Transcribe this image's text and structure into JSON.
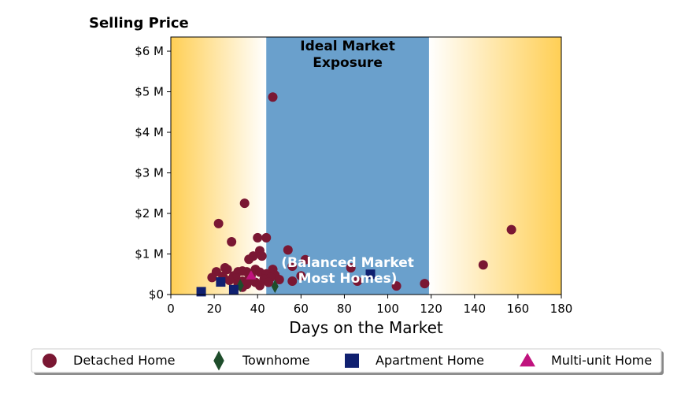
{
  "chart_data": {
    "type": "scatter",
    "title": "",
    "ylabel": "Selling Price",
    "xlabel": "Days on the Market",
    "xlim": [
      0,
      180
    ],
    "ylim": [
      0,
      6350000
    ],
    "xticks": [
      0,
      20,
      40,
      60,
      80,
      100,
      120,
      140,
      160,
      180
    ],
    "xtick_labels": [
      "0",
      "20",
      "40",
      "60",
      "80",
      "100",
      "120",
      "140",
      "160",
      "180"
    ],
    "yticks": [
      0,
      1000000,
      2000000,
      3000000,
      4000000,
      5000000,
      6000000
    ],
    "ytick_labels": [
      "$0",
      "$1 M",
      "$2 M",
      "$3 M",
      "$4 M",
      "$5 M",
      "$6 M"
    ],
    "grid": false,
    "legend_position": "bottom",
    "bands": {
      "balanced": {
        "x_range": [
          44,
          119
        ],
        "color": "#6aa0cc"
      },
      "gradient_color": "#ffcf55"
    },
    "annotations": {
      "top_line1": "Ideal Market",
      "top_line2": "Exposure",
      "bottom_line1": "(Balanced Market",
      "bottom_line2": "Most Homes)"
    },
    "series": [
      {
        "name": "Detached Home",
        "marker": "circle",
        "color": "#7a1733",
        "points": [
          [
            47,
            4870000
          ],
          [
            34,
            2250000
          ],
          [
            22,
            1750000
          ],
          [
            157,
            1600000
          ],
          [
            28,
            1300000
          ],
          [
            40,
            1400000
          ],
          [
            44,
            1400000
          ],
          [
            54,
            1100000
          ],
          [
            41,
            1080000
          ],
          [
            42,
            950000
          ],
          [
            38,
            950000
          ],
          [
            36,
            870000
          ],
          [
            62,
            860000
          ],
          [
            144,
            730000
          ],
          [
            56,
            700000
          ],
          [
            83,
            660000
          ],
          [
            25,
            660000
          ],
          [
            26,
            620000
          ],
          [
            39,
            620000
          ],
          [
            47,
            620000
          ],
          [
            33,
            580000
          ],
          [
            21,
            560000
          ],
          [
            31,
            560000
          ],
          [
            35,
            560000
          ],
          [
            41,
            550000
          ],
          [
            44,
            510000
          ],
          [
            48,
            480000
          ],
          [
            29,
            460000
          ],
          [
            37,
            470000
          ],
          [
            24,
            450000
          ],
          [
            60,
            460000
          ],
          [
            46,
            420000
          ],
          [
            19,
            420000
          ],
          [
            30,
            400000
          ],
          [
            36,
            380000
          ],
          [
            43,
            380000
          ],
          [
            50,
            370000
          ],
          [
            27,
            350000
          ],
          [
            33,
            330000
          ],
          [
            56,
            330000
          ],
          [
            86,
            330000
          ],
          [
            39,
            300000
          ],
          [
            45,
            300000
          ],
          [
            31,
            280000
          ],
          [
            35,
            250000
          ],
          [
            117,
            270000
          ],
          [
            41,
            220000
          ],
          [
            104,
            210000
          ],
          [
            33,
            180000
          ]
        ]
      },
      {
        "name": "Townhome",
        "marker": "diamond",
        "color": "#1e4d2b",
        "points": [
          [
            32,
            220000
          ],
          [
            48,
            200000
          ]
        ]
      },
      {
        "name": "Apartment Home",
        "marker": "square",
        "color": "#102070",
        "points": [
          [
            23,
            310000
          ],
          [
            92,
            500000
          ],
          [
            29,
            120000
          ],
          [
            14,
            70000
          ]
        ]
      },
      {
        "name": "Multi-unit Home",
        "marker": "triangle",
        "color": "#c0137e",
        "points": [
          [
            37,
            470000
          ]
        ]
      }
    ]
  }
}
